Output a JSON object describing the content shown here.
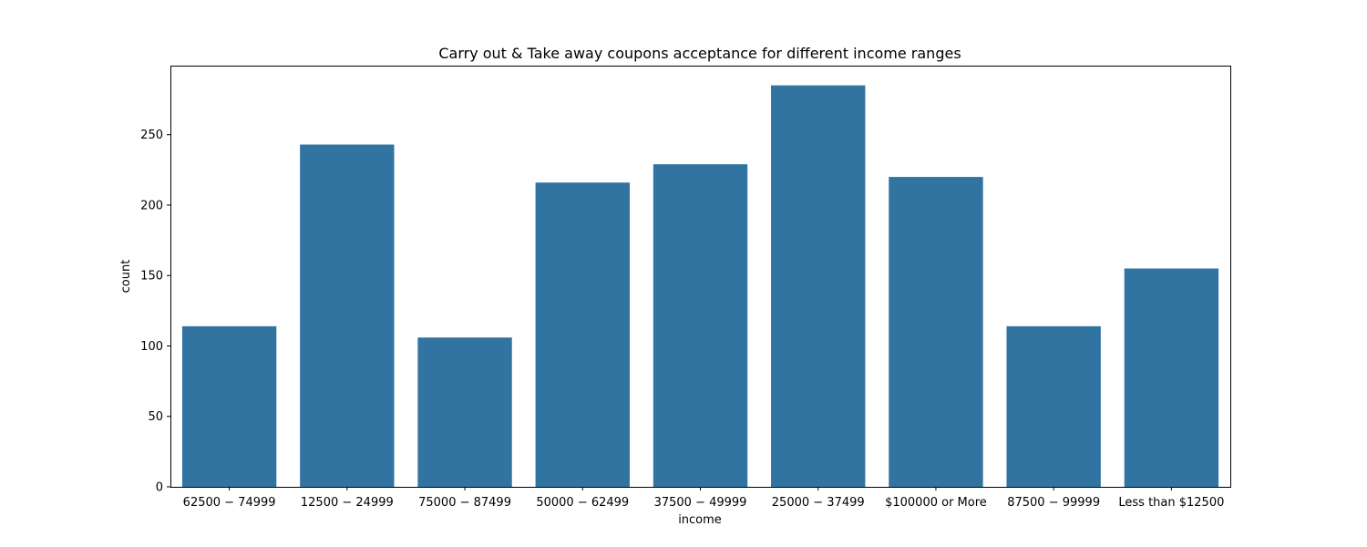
{
  "chart_data": {
    "type": "bar",
    "title": "Carry out & Take away coupons acceptance for different income ranges",
    "xlabel": "income",
    "ylabel": "count",
    "categories": [
      "$62500 - $74999",
      "$12500 - $24999",
      "$75000 - $87499",
      "$50000 - $62499",
      "$37500 - $49999",
      "$25000 - $37499",
      "$100000 or More",
      "$87500 - $99999",
      "Less than $12500"
    ],
    "category_display": [
      "62500 − 74999",
      "12500 − 24999",
      "75000 − 87499",
      "50000 − 62499",
      "37500 − 49999",
      "25000 − 37499",
      "$100000 or More",
      "87500 − 99999",
      "Less than $12500"
    ],
    "values": [
      114,
      243,
      106,
      216,
      229,
      285,
      220,
      114,
      155
    ],
    "ylim": [
      0,
      299
    ],
    "yticks": [
      0,
      50,
      100,
      150,
      200,
      250
    ],
    "grid": false,
    "bar_color": "#3274a1"
  }
}
